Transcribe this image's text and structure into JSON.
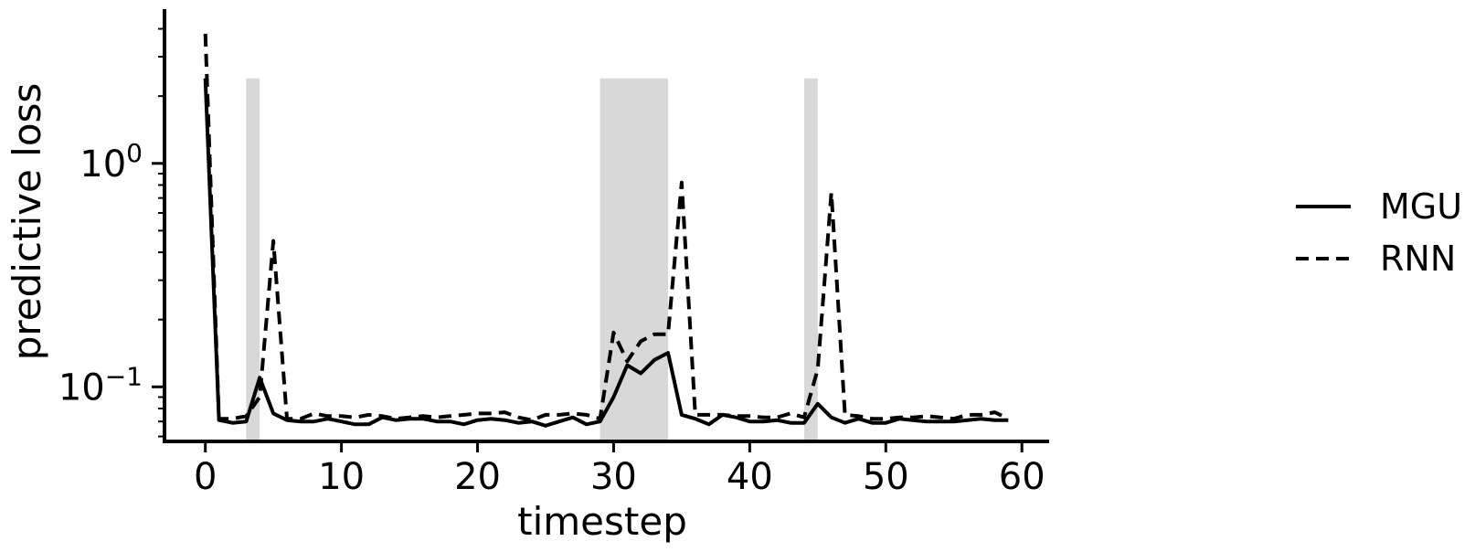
{
  "chart_data": {
    "type": "line",
    "title": "",
    "xlabel": "timestep",
    "ylabel": "predictive loss",
    "xlim": [
      -3,
      62
    ],
    "ylim": [
      0.057,
      4.9
    ],
    "y_scale": "log",
    "x_ticks": [
      0,
      10,
      20,
      30,
      40,
      50,
      60
    ],
    "x_tick_labels": [
      "0",
      "10",
      "20",
      "30",
      "40",
      "50",
      "60"
    ],
    "y_ticks": [
      {
        "value": 1,
        "base": "10",
        "exp": "0"
      },
      {
        "value": 0.1,
        "base": "10",
        "exp": "−1"
      }
    ],
    "grid": false,
    "legend_position": "right",
    "shaded_regions": [
      {
        "start": 3,
        "end": 4
      },
      {
        "start": 29,
        "end": 34
      },
      {
        "start": 44,
        "end": 45
      }
    ],
    "shade_color": "#d8d8d8",
    "line_color": "#000000",
    "series": [
      {
        "name": "MGU",
        "style": "solid",
        "x": [
          0,
          1,
          2,
          3,
          4,
          5,
          6,
          7,
          8,
          9,
          10,
          11,
          12,
          13,
          14,
          15,
          16,
          17,
          18,
          19,
          20,
          21,
          22,
          23,
          24,
          25,
          26,
          27,
          28,
          29,
          30,
          31,
          32,
          33,
          34,
          35,
          36,
          37,
          38,
          39,
          40,
          41,
          42,
          43,
          44,
          45,
          46,
          47,
          48,
          49,
          50,
          51,
          52,
          53,
          54,
          55,
          56,
          57,
          58,
          59
        ],
        "y": [
          2.4,
          0.071,
          0.069,
          0.07,
          0.11,
          0.076,
          0.071,
          0.07,
          0.07,
          0.072,
          0.07,
          0.068,
          0.068,
          0.073,
          0.071,
          0.072,
          0.072,
          0.07,
          0.07,
          0.068,
          0.071,
          0.072,
          0.071,
          0.069,
          0.07,
          0.067,
          0.07,
          0.073,
          0.068,
          0.07,
          0.09,
          0.125,
          0.115,
          0.132,
          0.142,
          0.075,
          0.072,
          0.068,
          0.075,
          0.073,
          0.07,
          0.07,
          0.071,
          0.069,
          0.069,
          0.084,
          0.073,
          0.069,
          0.072,
          0.069,
          0.069,
          0.072,
          0.071,
          0.07,
          0.07,
          0.07,
          0.071,
          0.072,
          0.071,
          0.071
        ]
      },
      {
        "name": "RNN",
        "style": "dashed",
        "x": [
          0,
          1,
          2,
          3,
          4,
          5,
          6,
          7,
          8,
          9,
          10,
          11,
          12,
          13,
          14,
          15,
          16,
          17,
          18,
          19,
          20,
          21,
          22,
          23,
          24,
          25,
          26,
          27,
          28,
          29,
          30,
          31,
          32,
          33,
          34,
          35,
          36,
          37,
          38,
          39,
          40,
          41,
          42,
          43,
          44,
          45,
          46,
          47,
          48,
          49,
          50,
          51,
          52,
          53,
          54,
          55,
          56,
          57,
          58,
          59
        ],
        "y": [
          3.8,
          0.072,
          0.072,
          0.074,
          0.09,
          0.45,
          0.072,
          0.072,
          0.076,
          0.074,
          0.074,
          0.073,
          0.075,
          0.074,
          0.072,
          0.073,
          0.074,
          0.073,
          0.074,
          0.075,
          0.076,
          0.076,
          0.077,
          0.073,
          0.071,
          0.075,
          0.075,
          0.076,
          0.075,
          0.072,
          0.175,
          0.13,
          0.16,
          0.172,
          0.172,
          0.82,
          0.075,
          0.075,
          0.075,
          0.074,
          0.074,
          0.073,
          0.073,
          0.076,
          0.073,
          0.12,
          0.74,
          0.075,
          0.074,
          0.072,
          0.072,
          0.073,
          0.073,
          0.074,
          0.073,
          0.072,
          0.075,
          0.075,
          0.077,
          0.072
        ]
      }
    ]
  }
}
